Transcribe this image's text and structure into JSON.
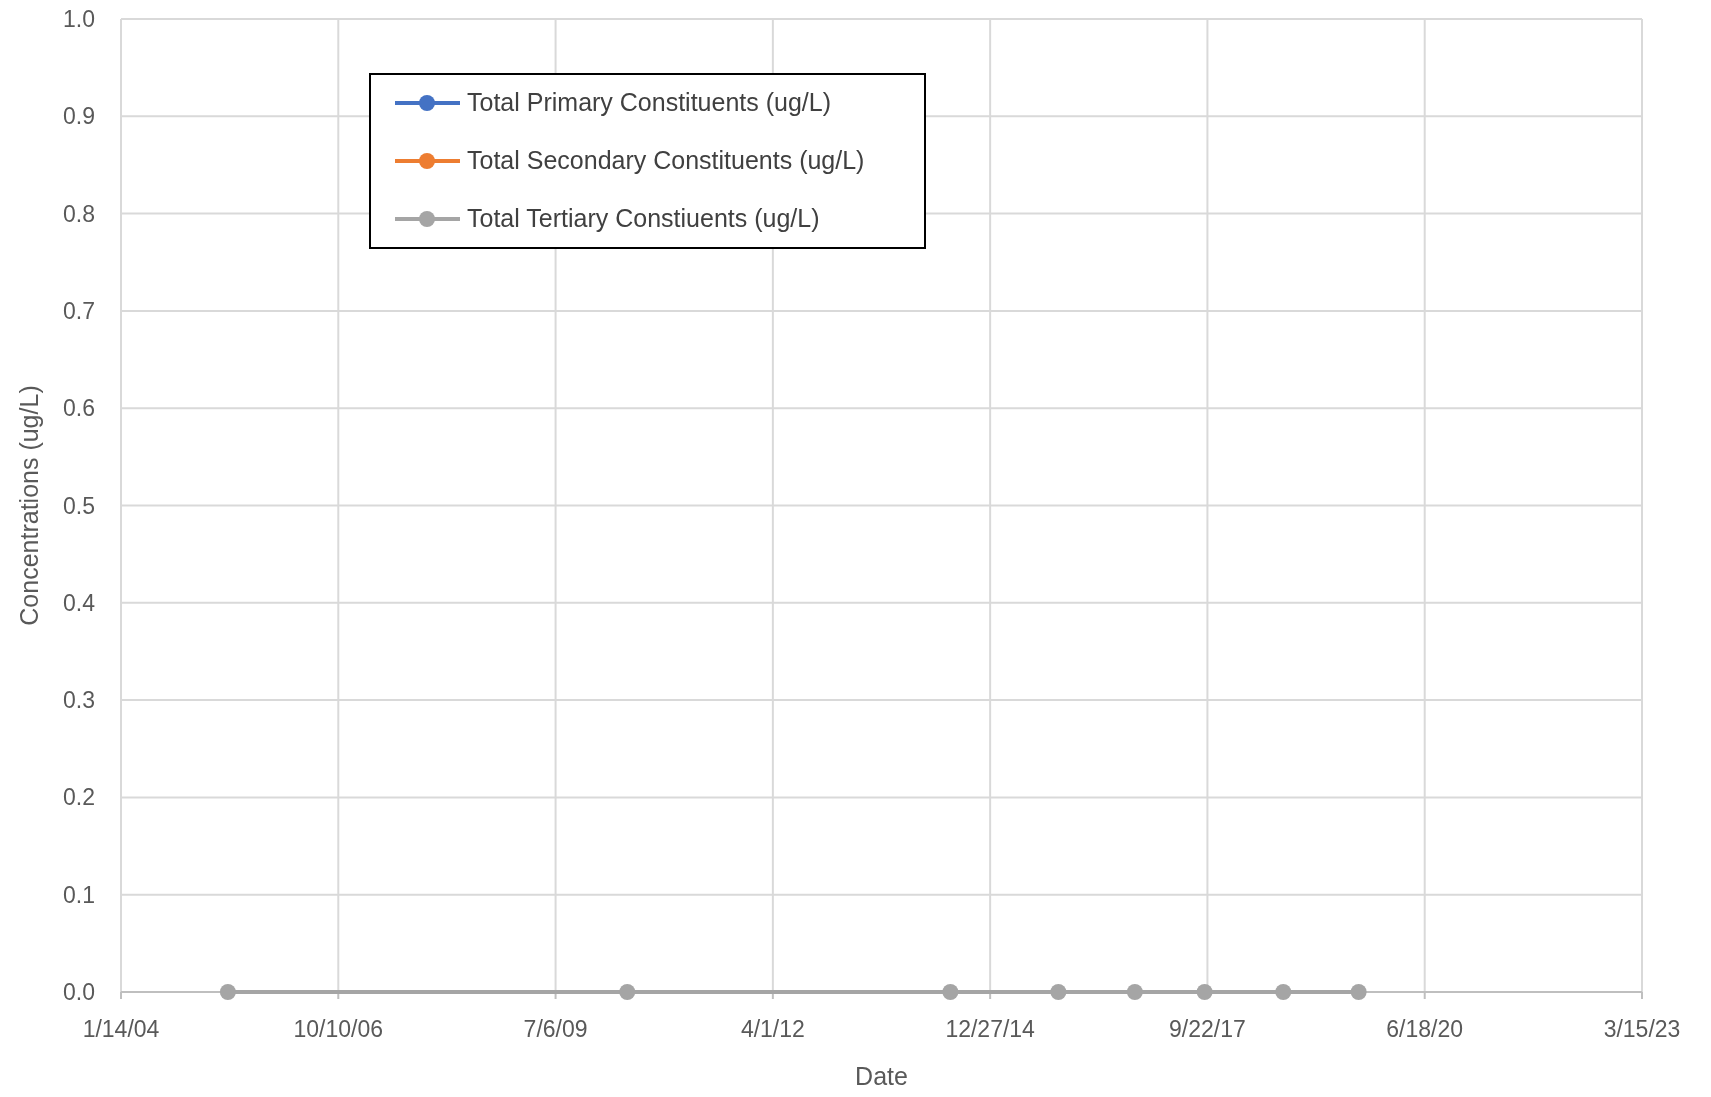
{
  "chart_data": {
    "type": "line",
    "xlabel": "Date",
    "ylabel": "Concentrations  (ug/L)",
    "x": [
      "2005-05-20",
      "2010-06-01",
      "2014-06-27",
      "2015-11-06",
      "2016-10-23",
      "2017-09-09",
      "2018-09-06",
      "2019-08-19"
    ],
    "series": [
      {
        "name": "Total Primary Constituents (ug/L)",
        "color": "#4472c4",
        "values": [
          null,
          null,
          null,
          null,
          null,
          null,
          null,
          null
        ]
      },
      {
        "name": "Total Secondary Constituents (ug/L)",
        "color": "#ed7d31",
        "values": [
          null,
          null,
          null,
          null,
          null,
          null,
          null,
          null
        ]
      },
      {
        "name": "Total Tertiary Constiuents (ug/L)",
        "color": "#a5a5a5",
        "values": [
          0,
          0,
          0,
          0,
          0,
          0,
          0,
          0
        ]
      }
    ],
    "xlim": [
      "2004-01-14",
      "2023-03-15"
    ],
    "xticks": [
      {
        "value": "2004-01-14",
        "label": "1/14/04"
      },
      {
        "value": "2006-10-10",
        "label": "10/10/06"
      },
      {
        "value": "2009-07-06",
        "label": "7/6/09"
      },
      {
        "value": "2012-04-01",
        "label": "4/1/12"
      },
      {
        "value": "2014-12-27",
        "label": "12/27/14"
      },
      {
        "value": "2017-09-22",
        "label": "9/22/17"
      },
      {
        "value": "2020-06-18",
        "label": "6/18/20"
      },
      {
        "value": "2023-03-15",
        "label": "3/15/23"
      }
    ],
    "ylim": [
      0,
      1
    ],
    "yticks": [
      {
        "value": 0,
        "label": "0.0"
      },
      {
        "value": 0.1,
        "label": "0.1"
      },
      {
        "value": 0.2,
        "label": "0.2"
      },
      {
        "value": 0.3,
        "label": "0.3"
      },
      {
        "value": 0.4,
        "label": "0.4"
      },
      {
        "value": 0.5,
        "label": "0.5"
      },
      {
        "value": 0.6,
        "label": "0.6"
      },
      {
        "value": 0.7,
        "label": "0.7"
      },
      {
        "value": 0.8,
        "label": "0.8"
      },
      {
        "value": 0.9,
        "label": "0.9"
      },
      {
        "value": 1,
        "label": "1.0"
      }
    ],
    "grid": true,
    "legend": "top left",
    "marker": "circle",
    "line_style": "solid"
  }
}
